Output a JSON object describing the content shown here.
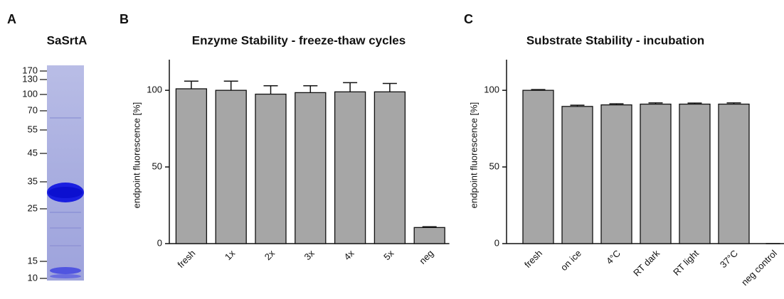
{
  "gel": {
    "panel": "A",
    "title": "SaSrtA",
    "markers": [
      170,
      130,
      100,
      70,
      55,
      45,
      35,
      25,
      15,
      10
    ]
  },
  "chart_data": [
    {
      "type": "bar",
      "panel": "B",
      "title": "Enzyme Stability - freeze-thaw cycles",
      "y_label": "endpoint fluorescence [%]",
      "categories": [
        "fresh",
        "1x",
        "2x",
        "3x",
        "4x",
        "5x",
        "neg"
      ],
      "values": [
        101,
        100,
        97.5,
        98.5,
        99,
        99,
        10.5
      ],
      "errors": [
        5,
        6,
        5.5,
        4.5,
        6,
        5.5,
        0.5
      ],
      "color": "#a6a6a6",
      "ylim": [
        0,
        120
      ],
      "yticks": [
        0,
        50,
        100
      ]
    },
    {
      "type": "bar",
      "panel": "C",
      "title": "Substrate Stability - incubation",
      "y_label": "endpoint fluorescence [%]",
      "categories": [
        "fresh",
        "on ice",
        "4°C",
        "RT dark",
        "RT light",
        "37°C",
        "neg control"
      ],
      "values": [
        100,
        89.5,
        90.5,
        91,
        91,
        91,
        0
      ],
      "errors": [
        0.5,
        0.8,
        0.7,
        0.8,
        0.7,
        0.8,
        0
      ],
      "color": "#a6a6a6",
      "ylim": [
        0,
        120
      ],
      "yticks": [
        0,
        50,
        100
      ]
    }
  ]
}
